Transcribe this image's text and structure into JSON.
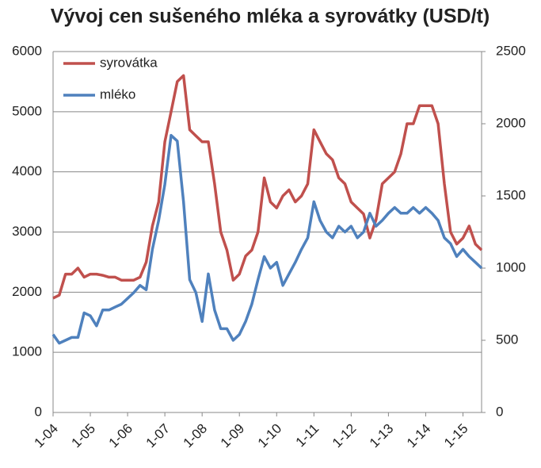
{
  "chart_data": {
    "type": "line",
    "title": "Vývoj cen sušeného mléka a syrovátky (USD/t)",
    "categories": [
      "1-04",
      null,
      null,
      null,
      null,
      null,
      "1-05",
      null,
      null,
      null,
      null,
      null,
      "1-06",
      null,
      null,
      null,
      null,
      null,
      "1-07",
      null,
      null,
      null,
      null,
      null,
      "1-08",
      null,
      null,
      null,
      null,
      null,
      "1-09",
      null,
      null,
      null,
      null,
      null,
      "1-10",
      null,
      null,
      null,
      null,
      null,
      "1-11",
      null,
      null,
      null,
      null,
      null,
      "1-12",
      null,
      null,
      null,
      null,
      null,
      "1-13",
      null,
      null,
      null,
      null,
      null,
      "1-14",
      null,
      null,
      null,
      null,
      null,
      "1-15",
      null,
      null,
      null
    ],
    "series": [
      {
        "name": "syrovátka",
        "color": "#c0504d",
        "axis": "y",
        "values": [
          1900,
          1950,
          2300,
          2300,
          2400,
          2250,
          2300,
          2300,
          2280,
          2250,
          2250,
          2200,
          2200,
          2200,
          2250,
          2500,
          3100,
          3500,
          4500,
          5000,
          5500,
          5600,
          4700,
          4600,
          4500,
          4500,
          3800,
          3000,
          2700,
          2200,
          2300,
          2600,
          2700,
          3000,
          3900,
          3500,
          3400,
          3600,
          3700,
          3500,
          3600,
          3800,
          4700,
          4500,
          4300,
          4200,
          3900,
          3800,
          3500,
          3400,
          3300,
          2900,
          3200,
          3800,
          3900,
          4000,
          4300,
          4800,
          4800,
          5100,
          5100,
          5100,
          4800,
          3800,
          3000,
          2800,
          2900,
          3100,
          2800,
          2700
        ]
      },
      {
        "name": "mléko",
        "color": "#4f81bd",
        "axis": "y2",
        "values": [
          540,
          480,
          500,
          520,
          520,
          690,
          670,
          600,
          710,
          710,
          730,
          750,
          790,
          830,
          880,
          850,
          1130,
          1330,
          1580,
          1920,
          1880,
          1460,
          920,
          830,
          630,
          960,
          710,
          580,
          580,
          500,
          540,
          630,
          750,
          920,
          1080,
          1000,
          1040,
          880,
          960,
          1040,
          1130,
          1210,
          1460,
          1330,
          1250,
          1210,
          1290,
          1250,
          1290,
          1210,
          1250,
          1380,
          1290,
          1330,
          1380,
          1420,
          1380,
          1380,
          1420,
          1380,
          1420,
          1380,
          1330,
          1210,
          1170,
          1080,
          1130,
          1080,
          1040,
          1000
        ]
      }
    ],
    "ylim": [
      0,
      6000
    ],
    "yticks": [
      0,
      1000,
      2000,
      3000,
      4000,
      5000,
      6000
    ],
    "y2lim": [
      0,
      2500
    ],
    "y2ticks": [
      0,
      500,
      1000,
      1500,
      2000,
      2500
    ],
    "grid": true,
    "legend": "top-left"
  }
}
